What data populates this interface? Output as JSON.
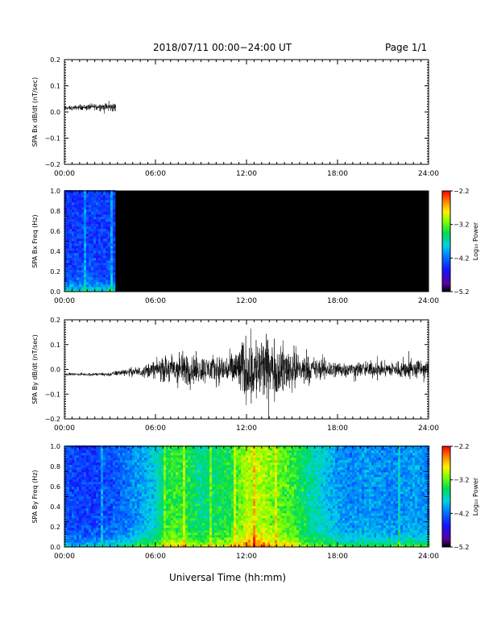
{
  "header": {
    "title": "2018/07/11  00:00−24:00 UT",
    "page": "Page 1/1"
  },
  "footer": {
    "xaxis_title": "Universal Time (hh:mm)"
  },
  "colors": {
    "trace": "#000000",
    "frame": "#000000",
    "masked": "#000000",
    "background": "#ffffff"
  },
  "chart_data": [
    {
      "type": "line",
      "ylabel": "SPA Bx dB/dt (nT/sec)",
      "xlim": [
        "00:00",
        "24:00"
      ],
      "xticks": [
        "00:00",
        "06:00",
        "12:00",
        "18:00",
        "24:00"
      ],
      "ylim": [
        -0.2,
        0.2
      ],
      "yticks": [
        "0.2",
        "0.1",
        "0.0",
        "−0.1",
        "−0.2"
      ],
      "series": [
        {
          "x_hours": [
            0.0,
            0.5,
            1.0,
            1.5,
            2.0,
            2.5,
            3.0,
            3.4
          ],
          "center": [
            0.015,
            0.015,
            0.018,
            0.018,
            0.02,
            0.02,
            0.018,
            0.018
          ],
          "amplitude": [
            0.012,
            0.012,
            0.014,
            0.016,
            0.018,
            0.02,
            0.025,
            0.028
          ]
        }
      ]
    },
    {
      "type": "heatmap",
      "ylabel": "SPA Bx Freq (Hz)",
      "xlim": [
        "00:00",
        "24:00"
      ],
      "xticks": [
        "00:00",
        "06:00",
        "12:00",
        "18:00",
        "24:00"
      ],
      "ylim": [
        0.0,
        1.0
      ],
      "yticks": [
        "1.0",
        "0.8",
        "0.6",
        "0.4",
        "0.2",
        "0.0"
      ],
      "colorbar": {
        "label": "Log₁₀ Power",
        "ticks": [
          "−2.2",
          "−3.2",
          "−4.2",
          "−5.2"
        ],
        "range": [
          -5.2,
          -2.2
        ]
      },
      "data_end_hours": 3.4,
      "after_end": "no data (black)",
      "profile": {
        "x_hours": [
          0.0,
          3.4
        ],
        "background_logpower": [
          -4.4,
          -4.4
        ],
        "low_freq_logpower": [
          -3.6,
          -3.6
        ]
      }
    },
    {
      "type": "line",
      "ylabel": "SPA By dB/dt (nT/sec)",
      "xlim": [
        "00:00",
        "24:00"
      ],
      "xticks": [
        "00:00",
        "06:00",
        "12:00",
        "18:00",
        "24:00"
      ],
      "ylim": [
        -0.2,
        0.2
      ],
      "yticks": [
        "0.2",
        "0.1",
        "0.0",
        "−0.1",
        "−0.2"
      ],
      "series": [
        {
          "x_hours": [
            0,
            1,
            2,
            3,
            4,
            5,
            6,
            7,
            8,
            9,
            10,
            11,
            12,
            13,
            14,
            15,
            16,
            17,
            18,
            19,
            20,
            21,
            22,
            23,
            24
          ],
          "center": [
            -0.02,
            -0.02,
            -0.02,
            -0.02,
            -0.01,
            -0.01,
            0.0,
            0.0,
            0.0,
            0.0,
            0.0,
            0.0,
            0.0,
            0.0,
            0.0,
            0.0,
            0.0,
            0.0,
            0.0,
            0.0,
            0.0,
            0.0,
            0.0,
            0.0,
            0.0
          ],
          "amplitude": [
            0.006,
            0.008,
            0.01,
            0.012,
            0.02,
            0.03,
            0.05,
            0.09,
            0.1,
            0.08,
            0.08,
            0.09,
            0.2,
            0.2,
            0.15,
            0.13,
            0.08,
            0.06,
            0.05,
            0.04,
            0.05,
            0.04,
            0.05,
            0.06,
            0.05
          ]
        }
      ]
    },
    {
      "type": "heatmap",
      "ylabel": "SPA By Freq (Hz)",
      "xlim": [
        "00:00",
        "24:00"
      ],
      "xticks": [
        "00:00",
        "06:00",
        "12:00",
        "18:00",
        "24:00"
      ],
      "ylim": [
        0.0,
        1.0
      ],
      "yticks": [
        "1.0",
        "0.8",
        "0.6",
        "0.4",
        "0.2",
        "0.0"
      ],
      "colorbar": {
        "label": "Log₁₀ Power",
        "ticks": [
          "−2.2",
          "−3.2",
          "−4.2",
          "−5.2"
        ],
        "range": [
          -5.2,
          -2.2
        ]
      },
      "profile": {
        "x_hours": [
          0,
          1,
          2,
          3,
          4,
          5,
          6,
          7,
          8,
          9,
          10,
          11,
          12,
          13,
          14,
          15,
          16,
          17,
          18,
          19,
          20,
          21,
          22,
          23,
          24
        ],
        "background_logpower": [
          -4.3,
          -4.4,
          -4.4,
          -4.3,
          -4.2,
          -4.0,
          -3.8,
          -3.3,
          -3.4,
          -3.6,
          -3.5,
          -3.4,
          -3.0,
          -3.0,
          -3.2,
          -3.3,
          -3.6,
          -3.8,
          -4.0,
          -4.1,
          -4.0,
          -4.1,
          -4.1,
          -4.0,
          -4.1
        ],
        "low_freq_logpower": [
          -3.8,
          -3.8,
          -3.7,
          -3.6,
          -3.4,
          -3.2,
          -3.0,
          -2.7,
          -2.8,
          -2.9,
          -2.8,
          -2.7,
          -2.3,
          -2.3,
          -2.6,
          -2.7,
          -3.0,
          -3.1,
          -3.2,
          -3.3,
          -3.2,
          -3.3,
          -3.3,
          -3.2,
          -3.3
        ]
      }
    }
  ]
}
